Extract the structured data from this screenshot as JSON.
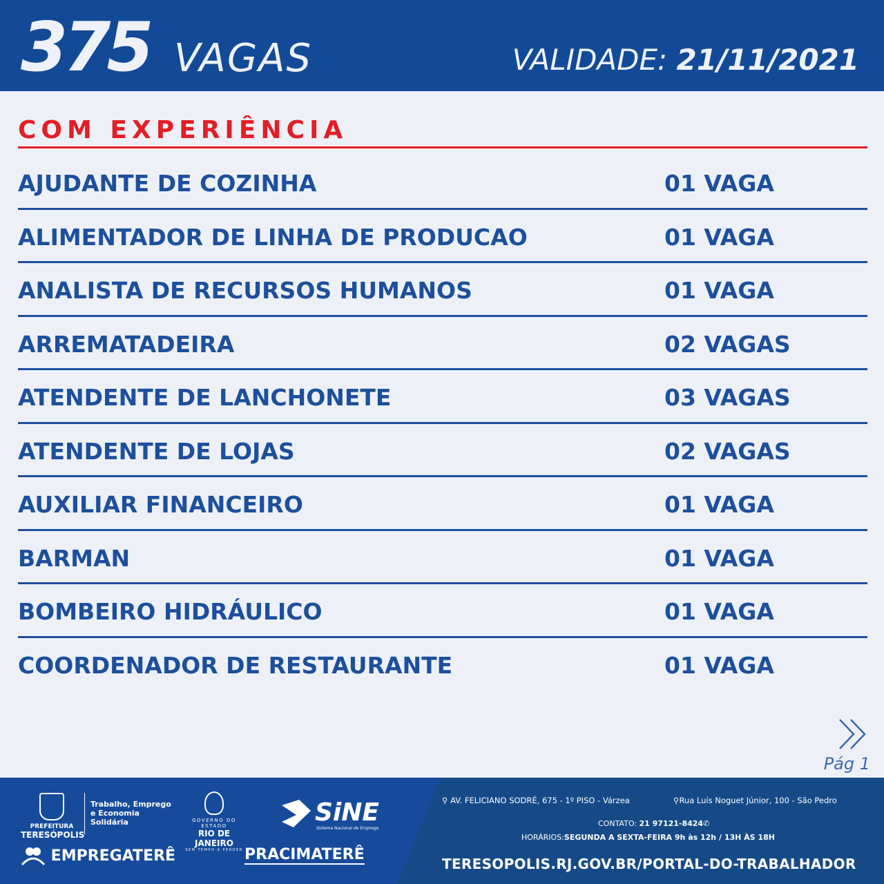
{
  "header": {
    "count": "375",
    "count_label": "VAGAS",
    "validity_label": "VALIDADE:",
    "validity_date": "21/11/2021"
  },
  "section": {
    "title": "COM EXPERIÊNCIA"
  },
  "jobs": [
    {
      "title": "AJUDANTE DE COZINHA",
      "vacancies": "01 VAGA"
    },
    {
      "title": "ALIMENTADOR DE LINHA DE PRODUCAO",
      "vacancies": "01 VAGA"
    },
    {
      "title": "ANALISTA DE RECURSOS HUMANOS",
      "vacancies": "01 VAGA"
    },
    {
      "title": "ARREMATADEIRA",
      "vacancies": "02 VAGAS"
    },
    {
      "title": "ATENDENTE DE LANCHONETE",
      "vacancies": "03 VAGAS"
    },
    {
      "title": "ATENDENTE DE LOJAS",
      "vacancies": "02 VAGAS"
    },
    {
      "title": "AUXILIAR FINANCEIRO",
      "vacancies": "01 VAGA"
    },
    {
      "title": "BARMAN",
      "vacancies": "01 VAGA"
    },
    {
      "title": "BOMBEIRO HIDRÁULICO",
      "vacancies": "01 VAGA"
    },
    {
      "title": "COORDENADOR DE RESTAURANTE",
      "vacancies": "01 VAGA"
    }
  ],
  "pagination": {
    "label": "Pág 1",
    "next_icon": "double-chevron-right"
  },
  "footer": {
    "pref_line1": "PREFEITURA",
    "pref_line2": "TERESÓPOLIS",
    "secretaria": [
      "Trabalho, Emprego",
      "e Economia",
      "Solidária"
    ],
    "rj_line1": "GOVERNO DO ESTADO",
    "rj_line2": "RIO DE JANEIRO",
    "rj_line3": "SEM TEMPO A PERDER",
    "sine": "SiNE",
    "sine_sub": "Sistema Nacional de Emprego",
    "empregatere": "EMPREGATERÊ",
    "pracimatere": "PRACIMATERÊ",
    "address1": "AV. FELICIANO SODRÉ, 675 - 1º PISO - Várzea",
    "address2": "Rua Luís Noguet Júnior, 100 - São Pedro",
    "contact_label": "CONTATO:",
    "contact_phone": "21 97121-8424",
    "hours_label": "HORÁRIOS:",
    "hours_value": "SEGUNDA A SEXTA-FEIRA  9h às 12h / 13H ÀS 18H",
    "url": "TERESOPOLIS.RJ.GOV.BR/PORTAL-DO-TRABALHADOR"
  },
  "colors": {
    "header_blue": "#134a98",
    "text_blue": "#1d4f9c",
    "accent_red": "#e31e27",
    "background": "#edf1f7"
  }
}
